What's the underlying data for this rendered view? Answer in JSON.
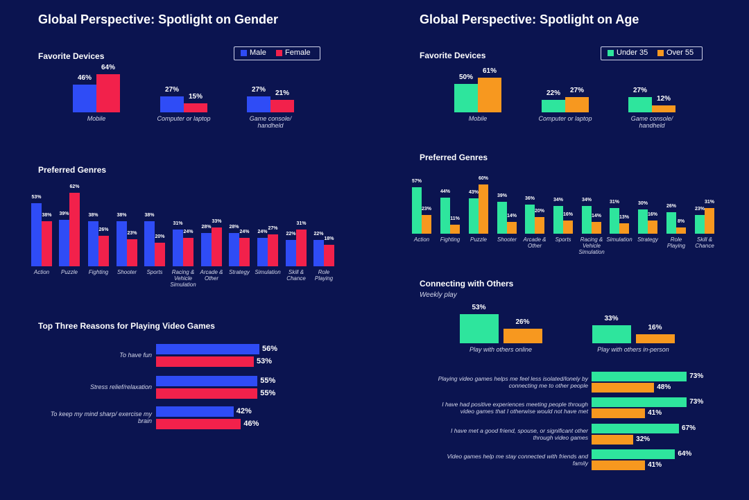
{
  "sections": [
    {
      "title": "Global Perspective: Spotlight on Gender"
    },
    {
      "title": "Global Perspective: Spotlight on Age"
    }
  ],
  "chart_data": [
    {
      "type": "bar",
      "title": "Favorite Devices",
      "categories": [
        "Mobile",
        "Computer or laptop",
        "Game console/ handheld"
      ],
      "legend": "top-right",
      "series": [
        {
          "name": "Male",
          "color": "#2f4cf6",
          "values": [
            46,
            27,
            27
          ],
          "value_labels": [
            "46%",
            "27%",
            "27%"
          ]
        },
        {
          "name": "Female",
          "color": "#f2214b",
          "values": [
            64,
            15,
            21
          ],
          "value_labels": [
            "64%",
            "15%",
            "21%"
          ]
        }
      ]
    },
    {
      "type": "bar",
      "title": "Preferred Genres",
      "categories": [
        "Action",
        "Puzzle",
        "Fighting",
        "Shooter",
        "Sports",
        "Racing & Vehicle Simulation",
        "Arcade & Other",
        "Strategy",
        "Simulation",
        "Skill & Chance",
        "Role Playing"
      ],
      "series": [
        {
          "color": "#2f4cf6",
          "values": [
            53,
            39,
            38,
            38,
            38,
            31,
            28,
            28,
            24,
            22,
            22
          ],
          "value_labels": [
            "53%",
            "39%",
            "38%",
            "38%",
            "38%",
            "31%",
            "28%",
            "28%",
            "24%",
            "22%",
            "22%"
          ]
        },
        {
          "color": "#f2214b",
          "values": [
            38,
            62,
            26,
            23,
            20,
            24,
            33,
            24,
            27,
            31,
            18
          ],
          "value_labels": [
            "38%",
            "62%",
            "26%",
            "23%",
            "20%",
            "24%",
            "33%",
            "24%",
            "27%",
            "31%",
            "18%"
          ]
        }
      ]
    },
    {
      "type": "hbar",
      "title": "Top Three Reasons for Playing Video Games",
      "categories": [
        "To have fun",
        "Stress relief/relaxation",
        "To keep my mind sharp/ exercise my brain"
      ],
      "series": [
        {
          "color": "#2f4cf6",
          "values": [
            56,
            55,
            42
          ],
          "value_labels": [
            "56%",
            "55%",
            "42%"
          ]
        },
        {
          "color": "#f2214b",
          "values": [
            53,
            55,
            46
          ],
          "value_labels": [
            "53%",
            "55%",
            "46%"
          ]
        }
      ]
    },
    {
      "type": "bar",
      "title": "Favorite Devices",
      "categories": [
        "Mobile",
        "Computer or laptop",
        "Game console/ handheld"
      ],
      "legend": "top-right",
      "series": [
        {
          "name": "Under 35",
          "color": "#2ee59d",
          "values": [
            50,
            22,
            27
          ],
          "value_labels": [
            "50%",
            "22%",
            "27%"
          ]
        },
        {
          "name": "Over 55",
          "color": "#f7981f",
          "values": [
            61,
            27,
            12
          ],
          "value_labels": [
            "61%",
            "27%",
            "12%"
          ]
        }
      ]
    },
    {
      "type": "bar",
      "title": "Preferred Genres",
      "categories": [
        "Action",
        "Fighting",
        "Puzzle",
        "Shooter",
        "Arcade & Other",
        "Sports",
        "Racing & Vehicle Simulation",
        "Simulation",
        "Strategy",
        "Role Playing",
        "Skill & Chance"
      ],
      "series": [
        {
          "color": "#2ee59d",
          "values": [
            57,
            44,
            43,
            39,
            36,
            34,
            34,
            31,
            30,
            26,
            23
          ],
          "value_labels": [
            "57%",
            "44%",
            "43%",
            "39%",
            "36%",
            "34%",
            "34%",
            "31%",
            "30%",
            "26%",
            "23%"
          ]
        },
        {
          "color": "#f7981f",
          "values": [
            23,
            11,
            60,
            14,
            20,
            16,
            14,
            13,
            16,
            8,
            31
          ],
          "value_labels": [
            "23%",
            "11%",
            "60%",
            "14%",
            "20%",
            "16%",
            "14%",
            "13%",
            "16%",
            "8%",
            "31%"
          ]
        }
      ]
    },
    {
      "type": "bar",
      "title": "Connecting with Others",
      "subtitle": "Weekly play",
      "categories": [
        "Play with others online",
        "Play with others in-person"
      ],
      "series": [
        {
          "color": "#2ee59d",
          "values": [
            53,
            33
          ],
          "value_labels": [
            "53%",
            "33%"
          ]
        },
        {
          "color": "#f7981f",
          "values": [
            26,
            16
          ],
          "value_labels": [
            "26%",
            "16%"
          ]
        }
      ]
    },
    {
      "type": "hbar",
      "categories": [
        "Playing video games helps me feel less isolated/lonely by connecting me to other people",
        "I have had positive experiences meeting people through video games that I otherwise would not have met",
        "I have met a good friend, spouse, or significant other through video games",
        "Video games help me stay connected with friends and family"
      ],
      "series": [
        {
          "color": "#2ee59d",
          "values": [
            73,
            73,
            67,
            64
          ],
          "value_labels": [
            "73%",
            "73%",
            "67%",
            "64%"
          ]
        },
        {
          "color": "#f7981f",
          "values": [
            48,
            41,
            32,
            41
          ],
          "value_labels": [
            "48%",
            "41%",
            "32%",
            "41%"
          ]
        }
      ]
    }
  ]
}
